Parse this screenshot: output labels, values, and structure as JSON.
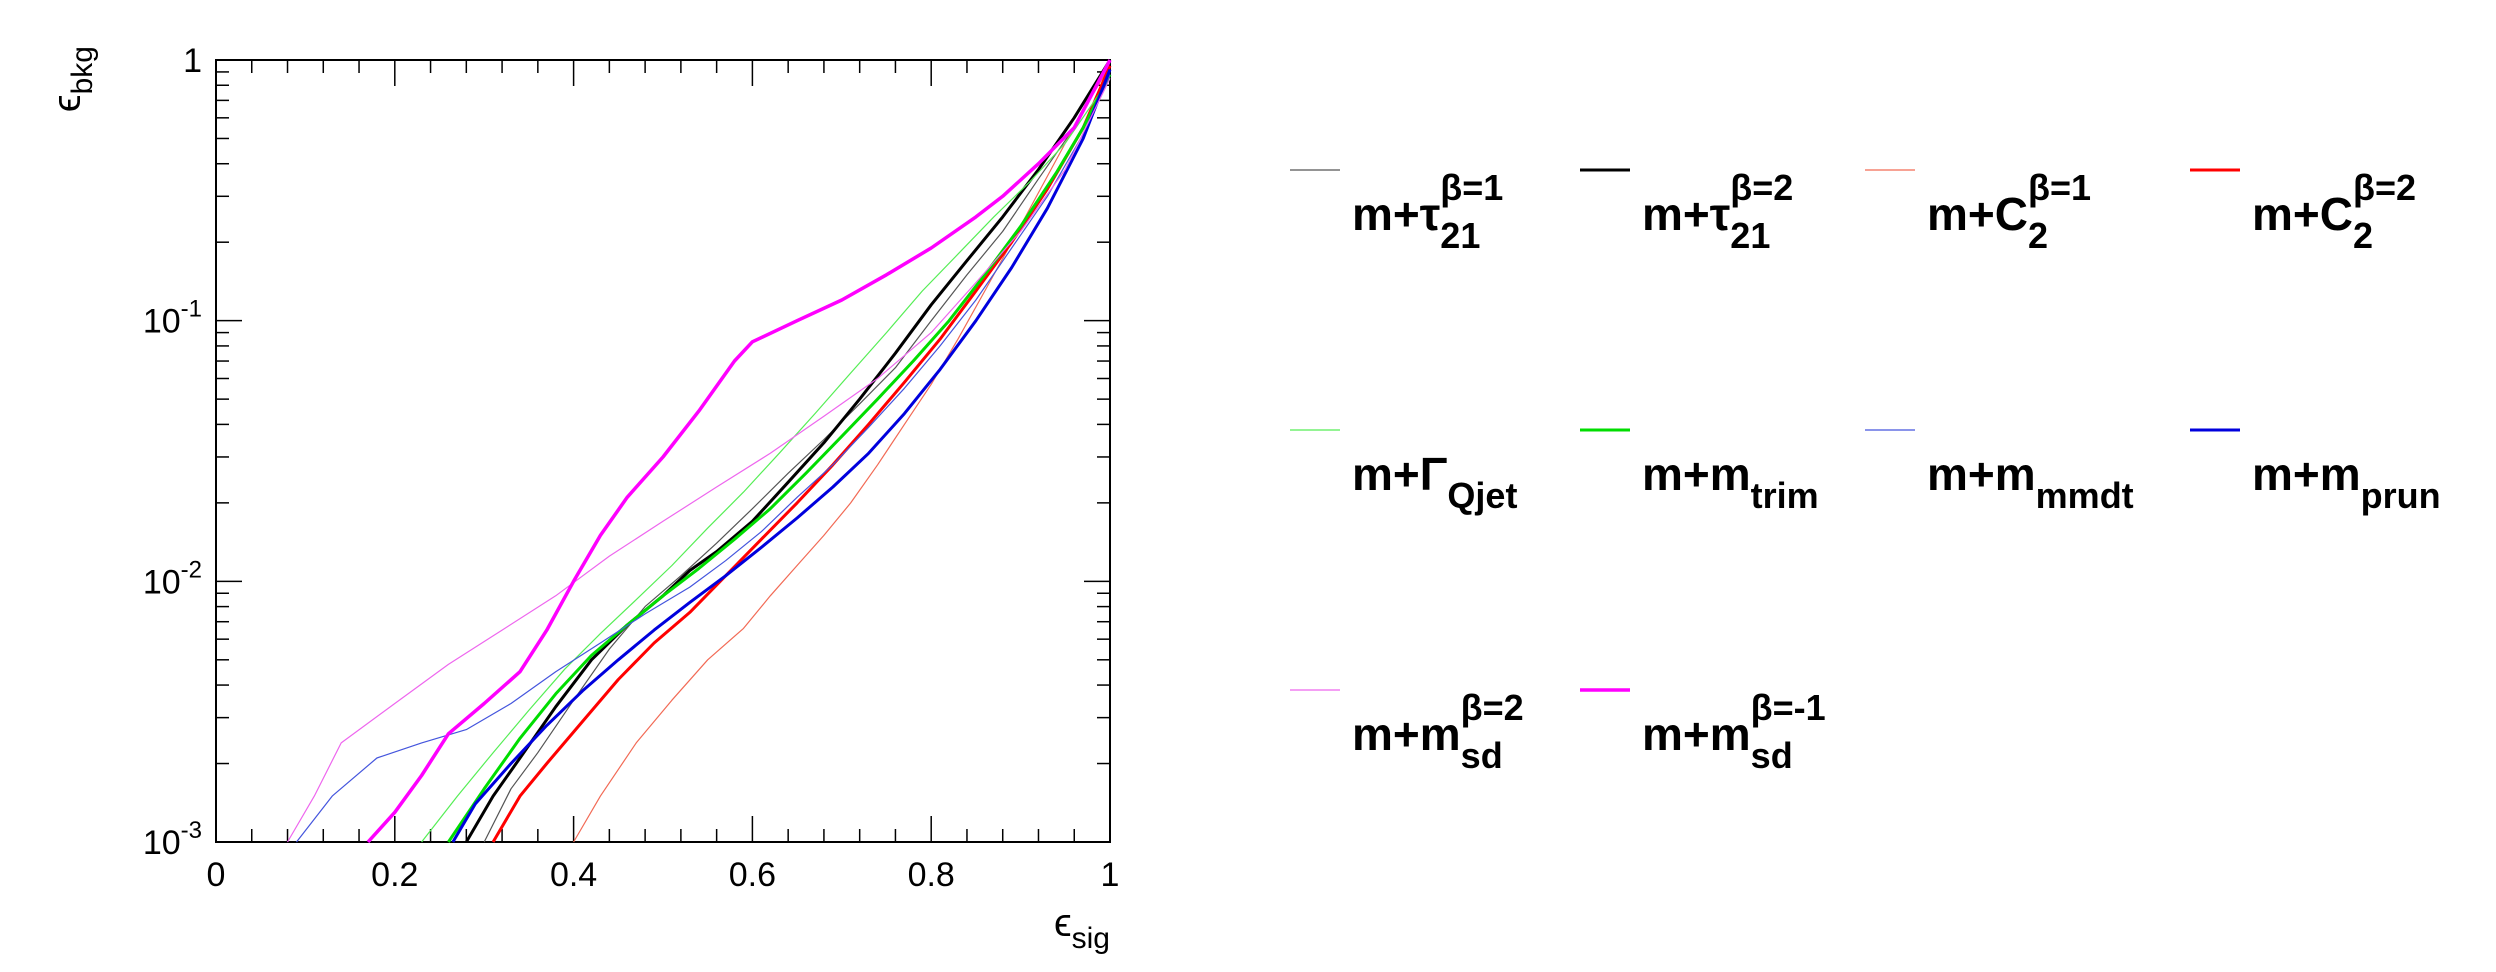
{
  "chart_data": {
    "type": "line",
    "title": "",
    "xlabel": "ϵsig",
    "ylabel": "ϵbkg",
    "xlim": [
      0,
      1
    ],
    "ylim": [
      0.001,
      1
    ],
    "y_scale": "log",
    "grid": false,
    "legend_placement": "right",
    "x_ticks": [
      "0",
      "0.2",
      "0.4",
      "0.6",
      "0.8",
      "1"
    ],
    "y_ticks": [
      {
        "value": 1,
        "base": "1",
        "exp": ""
      },
      {
        "value": 0.1,
        "base": "10",
        "exp": "-1"
      },
      {
        "value": 0.01,
        "base": "10",
        "exp": "-2"
      },
      {
        "value": 0.001,
        "base": "10",
        "exp": "-3"
      }
    ],
    "series": [
      {
        "name": "m+τ21 β=1",
        "label_base": "m+τ",
        "label_sub": "21",
        "label_sup": "β=1",
        "color": "#555555",
        "width": 1.2,
        "points": [
          [
            0.3,
            0.001
          ],
          [
            0.33,
            0.0016
          ],
          [
            0.36,
            0.0022
          ],
          [
            0.4,
            0.0035
          ],
          [
            0.44,
            0.0055
          ],
          [
            0.48,
            0.008
          ],
          [
            0.52,
            0.0105
          ],
          [
            0.56,
            0.014
          ],
          [
            0.6,
            0.019
          ],
          [
            0.64,
            0.026
          ],
          [
            0.68,
            0.035
          ],
          [
            0.72,
            0.048
          ],
          [
            0.76,
            0.066
          ],
          [
            0.8,
            0.1
          ],
          [
            0.84,
            0.15
          ],
          [
            0.88,
            0.22
          ],
          [
            0.92,
            0.35
          ],
          [
            0.96,
            0.55
          ],
          [
            1.0,
            1.0
          ]
        ]
      },
      {
        "name": "m+τ21 β=2",
        "label_base": "m+τ",
        "label_sub": "21",
        "label_sup": "β=2",
        "color": "#000000",
        "width": 3,
        "points": [
          [
            0.28,
            0.001
          ],
          [
            0.31,
            0.0015
          ],
          [
            0.34,
            0.0021
          ],
          [
            0.38,
            0.0033
          ],
          [
            0.42,
            0.005
          ],
          [
            0.46,
            0.0068
          ],
          [
            0.5,
            0.0088
          ],
          [
            0.53,
            0.011
          ],
          [
            0.56,
            0.013
          ],
          [
            0.6,
            0.017
          ],
          [
            0.64,
            0.024
          ],
          [
            0.68,
            0.034
          ],
          [
            0.72,
            0.05
          ],
          [
            0.76,
            0.075
          ],
          [
            0.8,
            0.115
          ],
          [
            0.84,
            0.17
          ],
          [
            0.88,
            0.25
          ],
          [
            0.92,
            0.38
          ],
          [
            0.96,
            0.6
          ],
          [
            1.0,
            1.0
          ]
        ]
      },
      {
        "name": "m+C2 β=1",
        "label_base": "m+C",
        "label_sub": "2",
        "label_sup": "β=1",
        "color": "#f26a55",
        "width": 1.2,
        "points": [
          [
            0.4,
            0.001
          ],
          [
            0.43,
            0.0015
          ],
          [
            0.47,
            0.0024
          ],
          [
            0.51,
            0.0035
          ],
          [
            0.55,
            0.005
          ],
          [
            0.59,
            0.0066
          ],
          [
            0.62,
            0.0088
          ],
          [
            0.65,
            0.0115
          ],
          [
            0.68,
            0.015
          ],
          [
            0.71,
            0.02
          ],
          [
            0.74,
            0.028
          ],
          [
            0.77,
            0.04
          ],
          [
            0.8,
            0.057
          ],
          [
            0.83,
            0.085
          ],
          [
            0.86,
            0.13
          ],
          [
            0.89,
            0.2
          ],
          [
            0.92,
            0.31
          ],
          [
            0.95,
            0.48
          ],
          [
            0.98,
            0.73
          ],
          [
            1.0,
            0.95
          ]
        ]
      },
      {
        "name": "m+C2 β=2",
        "label_base": "m+C",
        "label_sub": "2",
        "label_sup": "β=2",
        "color": "#ff0000",
        "width": 3,
        "points": [
          [
            0.31,
            0.001
          ],
          [
            0.34,
            0.0015
          ],
          [
            0.37,
            0.002
          ],
          [
            0.41,
            0.0029
          ],
          [
            0.45,
            0.0042
          ],
          [
            0.49,
            0.0058
          ],
          [
            0.53,
            0.0076
          ],
          [
            0.57,
            0.0105
          ],
          [
            0.61,
            0.0145
          ],
          [
            0.65,
            0.02
          ],
          [
            0.69,
            0.028
          ],
          [
            0.73,
            0.04
          ],
          [
            0.77,
            0.058
          ],
          [
            0.81,
            0.085
          ],
          [
            0.85,
            0.13
          ],
          [
            0.89,
            0.2
          ],
          [
            0.93,
            0.32
          ],
          [
            0.97,
            0.55
          ],
          [
            1.0,
            0.95
          ]
        ]
      },
      {
        "name": "m+ΓQjet",
        "label_base": "m+Γ",
        "label_sub": "Qjet",
        "label_sup": "",
        "color": "#55ee55",
        "width": 1.2,
        "points": [
          [
            0.23,
            0.001
          ],
          [
            0.27,
            0.0015
          ],
          [
            0.31,
            0.0022
          ],
          [
            0.35,
            0.0032
          ],
          [
            0.39,
            0.0046
          ],
          [
            0.43,
            0.0063
          ],
          [
            0.47,
            0.0085
          ],
          [
            0.51,
            0.0115
          ],
          [
            0.55,
            0.016
          ],
          [
            0.59,
            0.022
          ],
          [
            0.63,
            0.031
          ],
          [
            0.67,
            0.044
          ],
          [
            0.71,
            0.063
          ],
          [
            0.75,
            0.09
          ],
          [
            0.79,
            0.13
          ],
          [
            0.83,
            0.18
          ],
          [
            0.87,
            0.25
          ],
          [
            0.91,
            0.34
          ],
          [
            0.95,
            0.48
          ],
          [
            1.0,
            0.85
          ]
        ]
      },
      {
        "name": "m+mtrim",
        "label_base": "m+m",
        "label_sub": "trim",
        "label_sup": "",
        "color": "#00dd00",
        "width": 3,
        "points": [
          [
            0.26,
            0.001
          ],
          [
            0.3,
            0.0016
          ],
          [
            0.34,
            0.0025
          ],
          [
            0.38,
            0.0037
          ],
          [
            0.42,
            0.0052
          ],
          [
            0.46,
            0.0068
          ],
          [
            0.5,
            0.0088
          ],
          [
            0.54,
            0.0112
          ],
          [
            0.58,
            0.0145
          ],
          [
            0.62,
            0.019
          ],
          [
            0.66,
            0.026
          ],
          [
            0.7,
            0.036
          ],
          [
            0.74,
            0.05
          ],
          [
            0.78,
            0.07
          ],
          [
            0.82,
            0.1
          ],
          [
            0.86,
            0.15
          ],
          [
            0.9,
            0.23
          ],
          [
            0.94,
            0.37
          ],
          [
            0.97,
            0.55
          ],
          [
            1.0,
            0.88
          ]
        ]
      },
      {
        "name": "m+mmmdt",
        "label_base": "m+m",
        "label_sub": "mmdt",
        "label_sup": "",
        "color": "#4455dd",
        "width": 1.2,
        "points": [
          [
            0.09,
            0.001
          ],
          [
            0.13,
            0.0015
          ],
          [
            0.18,
            0.0021
          ],
          [
            0.23,
            0.0024
          ],
          [
            0.28,
            0.0027
          ],
          [
            0.33,
            0.0034
          ],
          [
            0.38,
            0.0045
          ],
          [
            0.43,
            0.0058
          ],
          [
            0.48,
            0.0075
          ],
          [
            0.53,
            0.0095
          ],
          [
            0.57,
            0.012
          ],
          [
            0.61,
            0.0155
          ],
          [
            0.65,
            0.021
          ],
          [
            0.69,
            0.028
          ],
          [
            0.73,
            0.039
          ],
          [
            0.77,
            0.055
          ],
          [
            0.81,
            0.08
          ],
          [
            0.85,
            0.12
          ],
          [
            0.89,
            0.19
          ],
          [
            0.93,
            0.3
          ],
          [
            0.97,
            0.52
          ],
          [
            1.0,
            0.88
          ]
        ]
      },
      {
        "name": "m+mprun",
        "label_base": "m+m",
        "label_sub": "prun",
        "label_sup": "",
        "color": "#0000dd",
        "width": 3,
        "points": [
          [
            0.265,
            0.001
          ],
          [
            0.29,
            0.0014
          ],
          [
            0.33,
            0.002
          ],
          [
            0.37,
            0.0028
          ],
          [
            0.41,
            0.0038
          ],
          [
            0.45,
            0.005
          ],
          [
            0.49,
            0.0065
          ],
          [
            0.53,
            0.0083
          ],
          [
            0.57,
            0.0105
          ],
          [
            0.61,
            0.0135
          ],
          [
            0.65,
            0.0175
          ],
          [
            0.69,
            0.023
          ],
          [
            0.73,
            0.031
          ],
          [
            0.77,
            0.044
          ],
          [
            0.81,
            0.065
          ],
          [
            0.85,
            0.1
          ],
          [
            0.89,
            0.16
          ],
          [
            0.93,
            0.27
          ],
          [
            0.97,
            0.5
          ],
          [
            1.0,
            0.92
          ]
        ]
      },
      {
        "name": "m+msd β=2",
        "label_base": "m+m",
        "label_sub": "sd",
        "label_sup": "β=2",
        "color": "#ee66ee",
        "width": 1.2,
        "points": [
          [
            0.08,
            0.001
          ],
          [
            0.11,
            0.0015
          ],
          [
            0.14,
            0.0024
          ],
          [
            0.2,
            0.0034
          ],
          [
            0.26,
            0.0048
          ],
          [
            0.32,
            0.0065
          ],
          [
            0.38,
            0.0088
          ],
          [
            0.44,
            0.0125
          ],
          [
            0.5,
            0.017
          ],
          [
            0.56,
            0.023
          ],
          [
            0.62,
            0.031
          ],
          [
            0.68,
            0.043
          ],
          [
            0.74,
            0.06
          ],
          [
            0.8,
            0.09
          ],
          [
            0.85,
            0.14
          ],
          [
            0.9,
            0.22
          ],
          [
            0.95,
            0.38
          ],
          [
            1.0,
            0.85
          ]
        ]
      },
      {
        "name": "m+msd β=-1",
        "label_base": "m+m",
        "label_sub": "sd",
        "label_sup": "β=-1",
        "color": "#ff00ff",
        "width": 3.5,
        "points": [
          [
            0.17,
            0.001
          ],
          [
            0.2,
            0.0013
          ],
          [
            0.23,
            0.0018
          ],
          [
            0.26,
            0.0026
          ],
          [
            0.3,
            0.0034
          ],
          [
            0.34,
            0.0045
          ],
          [
            0.37,
            0.0065
          ],
          [
            0.4,
            0.01
          ],
          [
            0.43,
            0.015
          ],
          [
            0.46,
            0.021
          ],
          [
            0.5,
            0.03
          ],
          [
            0.54,
            0.045
          ],
          [
            0.58,
            0.07
          ],
          [
            0.6,
            0.083
          ],
          [
            0.65,
            0.1
          ],
          [
            0.7,
            0.12
          ],
          [
            0.75,
            0.15
          ],
          [
            0.8,
            0.19
          ],
          [
            0.85,
            0.25
          ],
          [
            0.88,
            0.3
          ],
          [
            0.92,
            0.4
          ],
          [
            0.96,
            0.55
          ],
          [
            1.0,
            1.0
          ]
        ]
      }
    ]
  }
}
